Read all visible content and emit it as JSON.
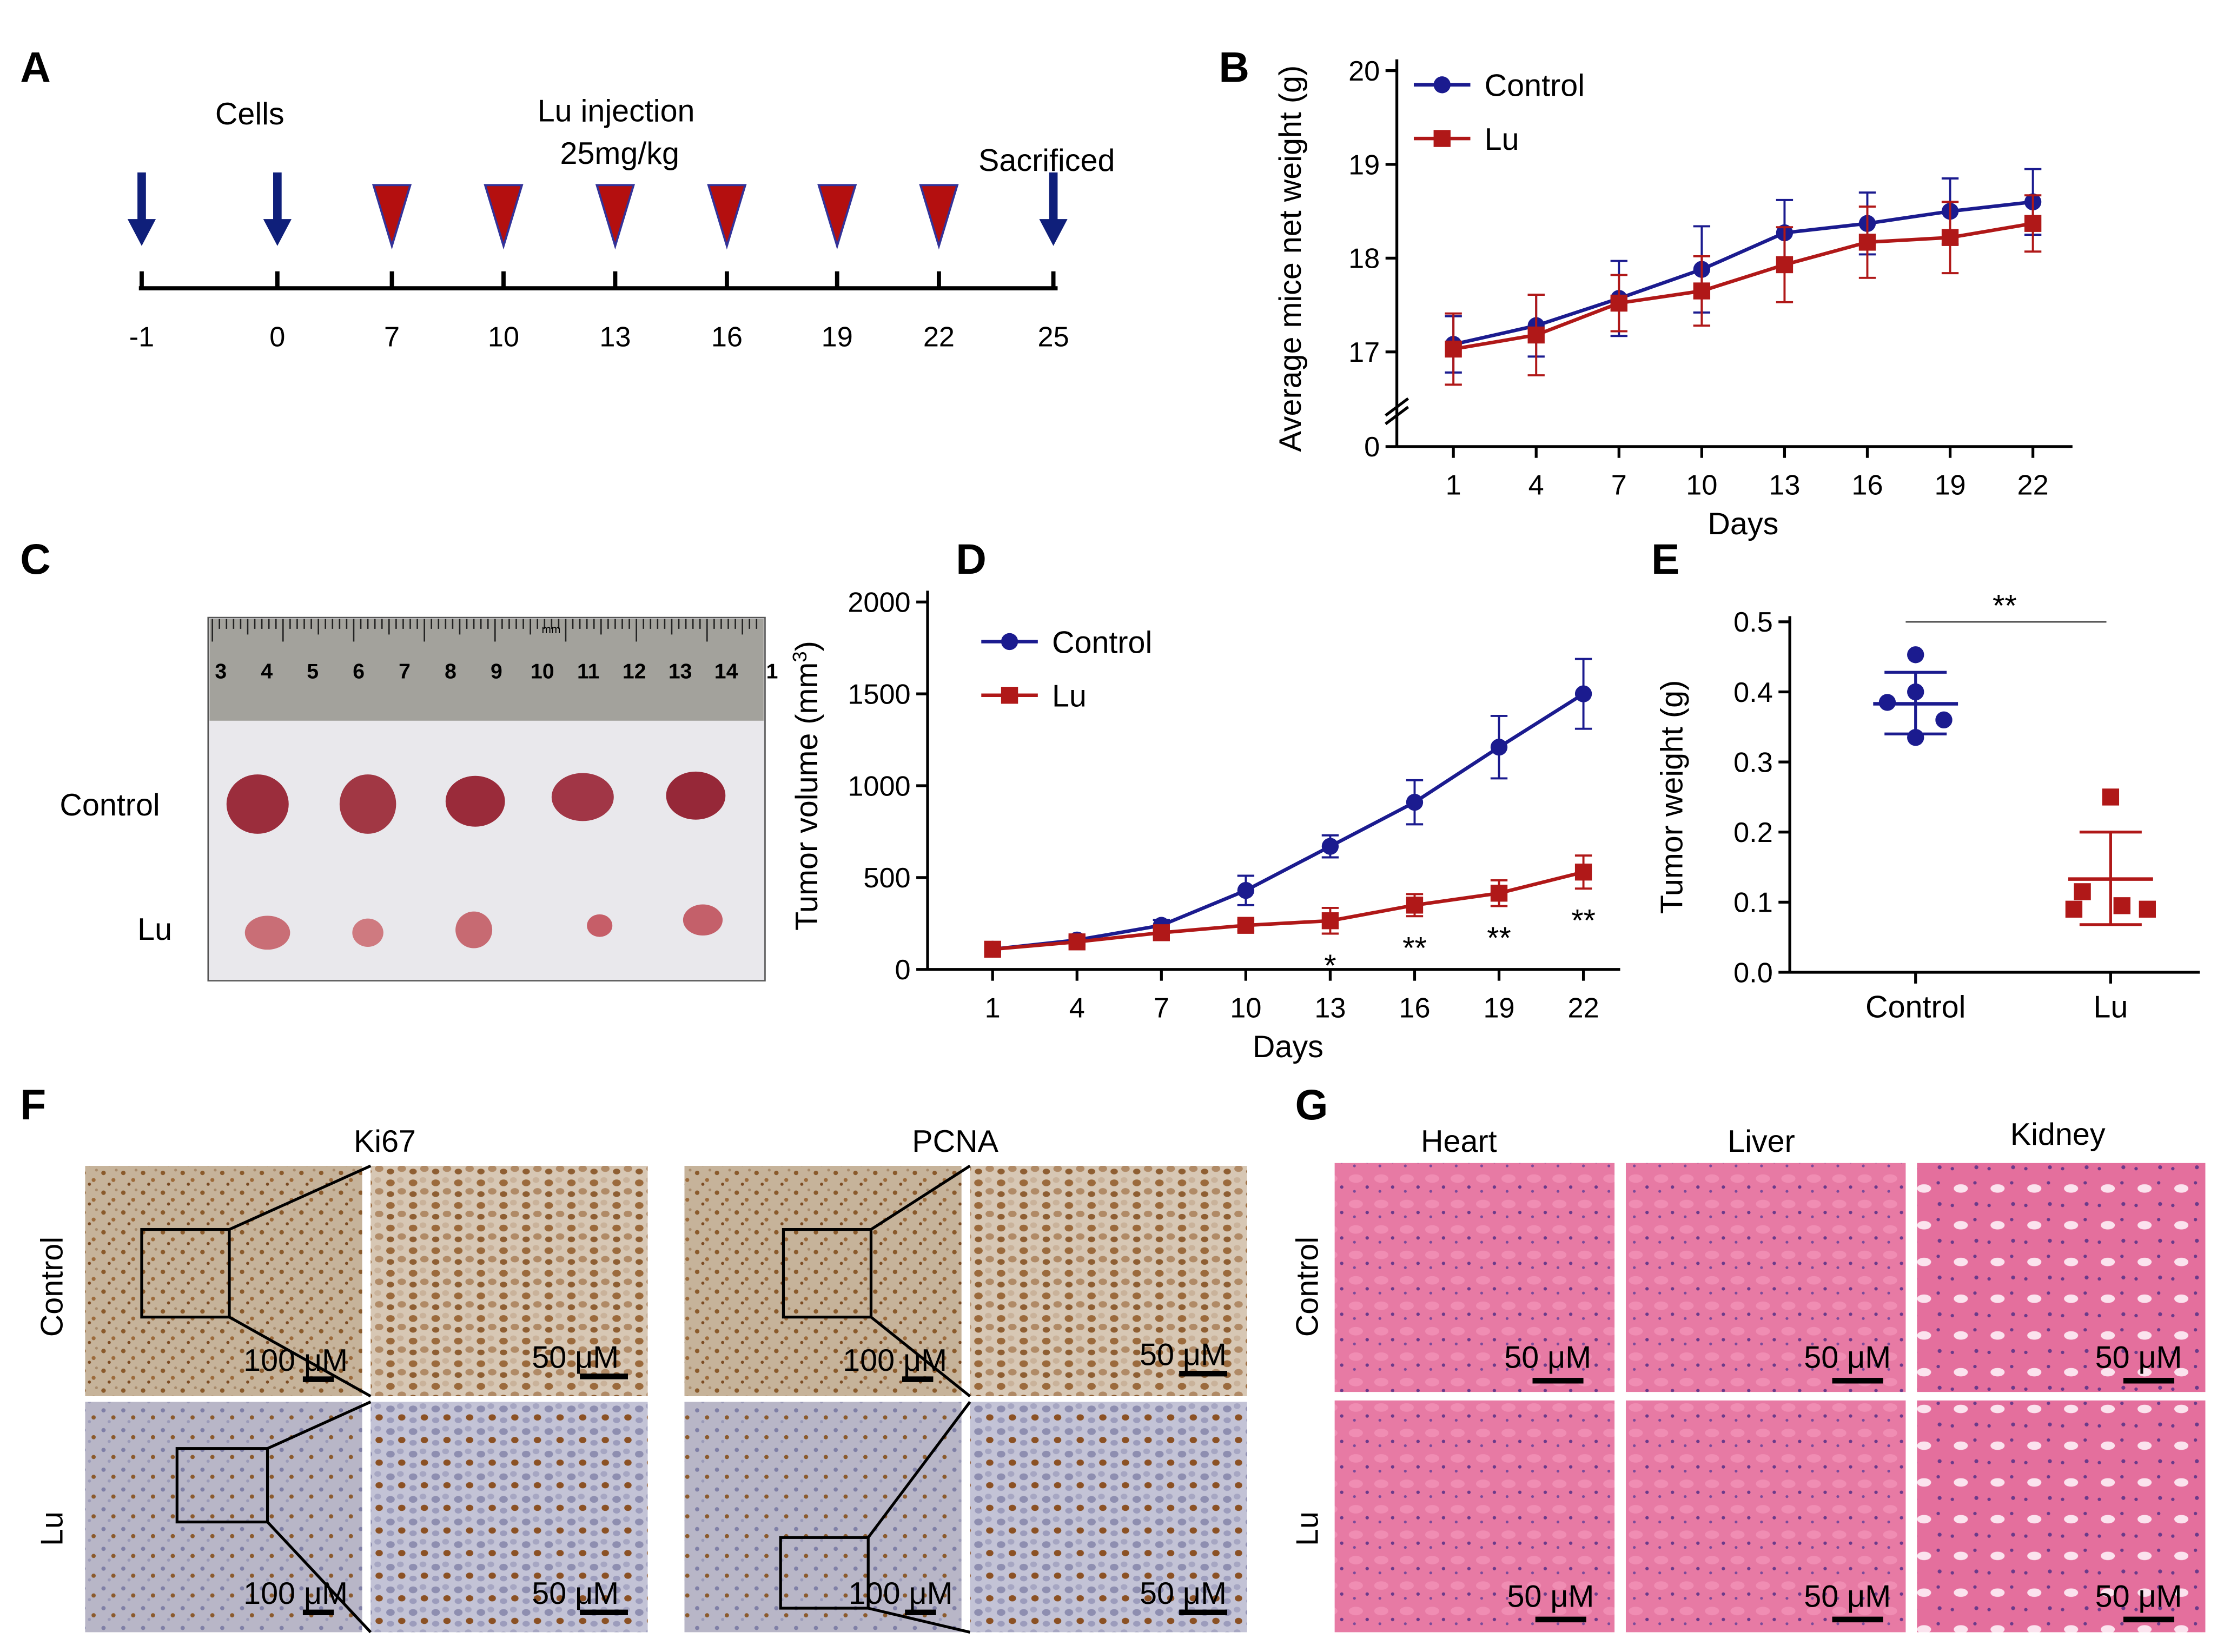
{
  "colors": {
    "control": "#1b1b8f",
    "lu": "#b01818",
    "arrow": "#0f1f7a",
    "triangle_fill": "#b40f0f",
    "triangle_stroke": "#333399",
    "axis": "#000000",
    "ihc_bg": "#c9b79d",
    "he_bg": "#e06c9a"
  },
  "panel_labels": {
    "a": "A",
    "b": "B",
    "c": "C",
    "d": "D",
    "e": "E",
    "f": "F",
    "g": "G"
  },
  "panel_a": {
    "cells_label": "Cells",
    "injection_label": "Lu injection",
    "dose_label": "25mg/kg",
    "sacrificed_label": "Sacrificed",
    "ticks": [
      "-1",
      "0",
      "7",
      "10",
      "13",
      "16",
      "19",
      "22",
      "25"
    ],
    "arrow_days": [
      "-1",
      "0",
      "25"
    ],
    "triangle_days": [
      "7",
      "10",
      "13",
      "16",
      "19",
      "22"
    ]
  },
  "panel_c": {
    "row_control": "Control",
    "row_lu": "Lu",
    "ruler_numbers": [
      "3",
      "4",
      "5",
      "6",
      "7",
      "8",
      "9",
      "10",
      "11",
      "12",
      "13",
      "14",
      "1"
    ],
    "ruler_unit": "mm"
  },
  "panel_f": {
    "ki67_title": "Ki67",
    "pcna_title": "PCNA",
    "row_control": "Control",
    "row_lu": "Lu",
    "scale_100": "100 μM",
    "scale_50": "50 μM"
  },
  "panel_g": {
    "heart_title": "Heart",
    "liver_title": "Liver",
    "kidney_title": "Kidney",
    "row_control": "Control",
    "row_lu": "Lu",
    "scale_50": "50 μM"
  },
  "chart_data": [
    {
      "panel": "B",
      "type": "line",
      "categories": [
        "1",
        "4",
        "7",
        "10",
        "13",
        "16",
        "19",
        "22"
      ],
      "ylabel": "Average mice net weight (g)",
      "xlabel": "Days",
      "yticks": [
        "0",
        "17",
        "18",
        "19",
        "20"
      ],
      "ylim": [
        17,
        20
      ],
      "axis_break": true,
      "legend_position": "top-left",
      "series": [
        {
          "name": "Control",
          "color": "#1b1b8f",
          "marker": "circle",
          "values": [
            17.08,
            17.28,
            17.57,
            17.88,
            18.27,
            18.37,
            18.5,
            18.6
          ],
          "errors": [
            0.3,
            0.33,
            0.4,
            0.46,
            0.35,
            0.33,
            0.35,
            0.35
          ]
        },
        {
          "name": "Lu",
          "color": "#b01818",
          "marker": "square",
          "values": [
            17.03,
            17.18,
            17.52,
            17.65,
            17.93,
            18.17,
            18.22,
            18.37
          ],
          "errors": [
            0.38,
            0.43,
            0.3,
            0.37,
            0.4,
            0.38,
            0.38,
            0.3
          ]
        }
      ]
    },
    {
      "panel": "D",
      "type": "line",
      "categories": [
        "1",
        "4",
        "7",
        "10",
        "13",
        "16",
        "19",
        "22"
      ],
      "ylabel": "Tumor volume (mm",
      "ylabel_sup": "3",
      "ylabel_close": ")",
      "xlabel": "Days",
      "yticks": [
        "0",
        "500",
        "1000",
        "1500",
        "2000"
      ],
      "ylim": [
        0,
        2000
      ],
      "legend_position": "top-left",
      "series": [
        {
          "name": "Control",
          "color": "#1b1b8f",
          "marker": "circle",
          "values": [
            110,
            160,
            240,
            430,
            670,
            910,
            1210,
            1500
          ],
          "errors": [
            15,
            20,
            30,
            80,
            60,
            120,
            170,
            190
          ]
        },
        {
          "name": "Lu",
          "color": "#b01818",
          "marker": "square",
          "values": [
            110,
            150,
            200,
            240,
            265,
            350,
            415,
            530
          ],
          "errors": [
            15,
            20,
            25,
            30,
            70,
            60,
            70,
            90
          ]
        }
      ],
      "significance": [
        {
          "day": "13",
          "label": "*"
        },
        {
          "day": "16",
          "label": "**"
        },
        {
          "day": "19",
          "label": "**"
        },
        {
          "day": "22",
          "label": "**"
        }
      ]
    },
    {
      "panel": "E",
      "type": "scatter",
      "categories": [
        "Control",
        "Lu"
      ],
      "ylabel": "Tumor weight (g)",
      "yticks": [
        "0.0",
        "0.1",
        "0.2",
        "0.3",
        "0.4",
        "0.5"
      ],
      "ylim": [
        0,
        0.5
      ],
      "significance_label": "**",
      "groups": [
        {
          "name": "Control",
          "color": "#1b1b8f",
          "marker": "circle",
          "points": [
            0.453,
            0.4,
            0.385,
            0.36,
            0.335
          ],
          "mean": 0.383,
          "sd_upper": 0.428,
          "sd_lower": 0.34
        },
        {
          "name": "Lu",
          "color": "#b01818",
          "marker": "square",
          "points": [
            0.25,
            0.115,
            0.09,
            0.09,
            0.095
          ],
          "mean": 0.133,
          "sd_upper": 0.2,
          "sd_lower": 0.068
        }
      ]
    }
  ]
}
